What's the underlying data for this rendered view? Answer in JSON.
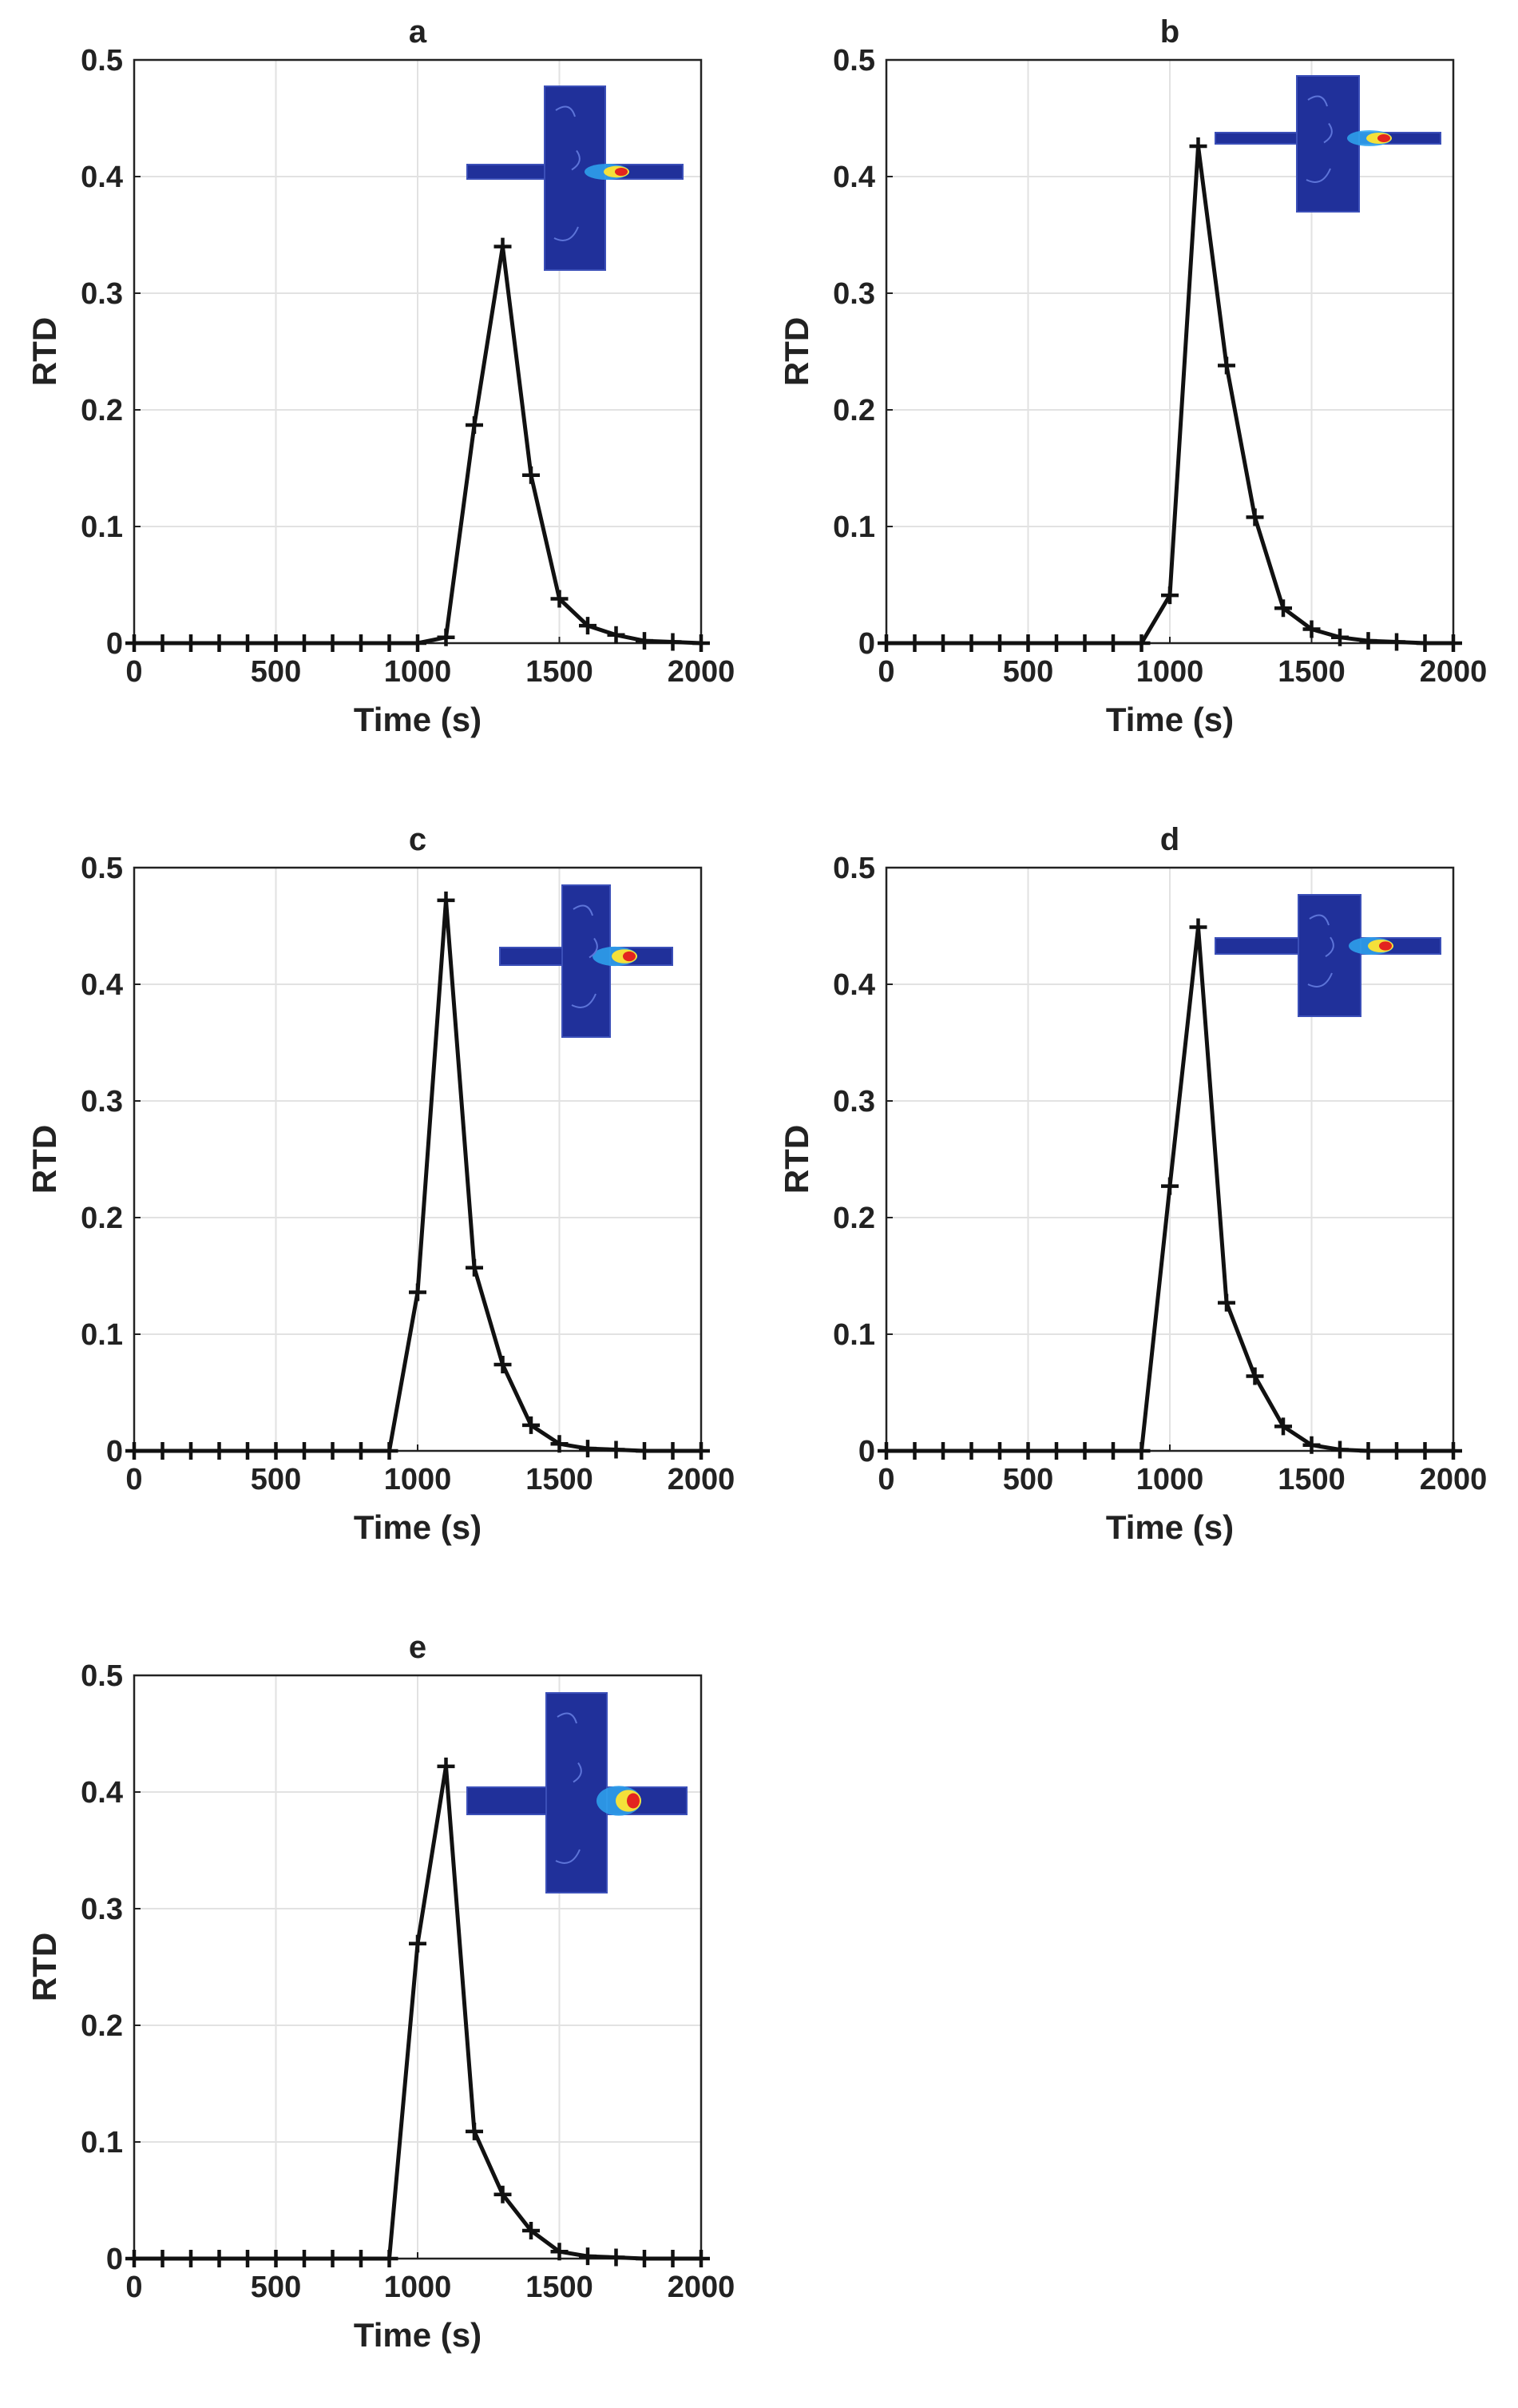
{
  "chart_data": [
    {
      "type": "line",
      "title": "a",
      "xlabel": "Time (s)",
      "ylabel": "RTD",
      "xlim": [
        0,
        2000
      ],
      "ylim": [
        0,
        0.5
      ],
      "xticks": [
        "0",
        "500",
        "1000",
        "1500",
        "2000"
      ],
      "yticks": [
        "0",
        "0.1",
        "0.2",
        "0.3",
        "0.4",
        "0.5"
      ],
      "grid": true,
      "marker": "+",
      "series": [
        {
          "name": "RTD",
          "x": [
            0,
            100,
            200,
            300,
            400,
            500,
            600,
            700,
            800,
            900,
            1000,
            1100,
            1200,
            1300,
            1400,
            1500,
            1600,
            1700,
            1800,
            1900,
            2000
          ],
          "values": [
            0,
            0,
            0,
            0,
            0,
            0,
            0,
            0,
            0,
            0,
            0,
            0.005,
            0.187,
            0.34,
            0.144,
            0.038,
            0.015,
            0.007,
            0.002,
            0.001,
            0
          ]
        }
      ],
      "inset": {
        "description": "reactor concentration contour",
        "position": "top-right",
        "color": "#20309a"
      }
    },
    {
      "type": "line",
      "title": "b",
      "xlabel": "Time (s)",
      "ylabel": "RTD",
      "xlim": [
        0,
        2000
      ],
      "ylim": [
        0,
        0.5
      ],
      "xticks": [
        "0",
        "500",
        "1000",
        "1500",
        "2000"
      ],
      "yticks": [
        "0",
        "0.1",
        "0.2",
        "0.3",
        "0.4",
        "0.5"
      ],
      "grid": true,
      "marker": "+",
      "series": [
        {
          "name": "RTD",
          "x": [
            0,
            100,
            200,
            300,
            400,
            500,
            600,
            700,
            800,
            900,
            1000,
            1100,
            1200,
            1300,
            1400,
            1500,
            1600,
            1700,
            1800,
            1900,
            2000
          ],
          "values": [
            0,
            0,
            0,
            0,
            0,
            0,
            0,
            0,
            0,
            0,
            0.041,
            0.426,
            0.238,
            0.108,
            0.03,
            0.012,
            0.005,
            0.002,
            0.001,
            0,
            0
          ]
        }
      ],
      "inset": {
        "description": "reactor concentration contour",
        "position": "top-right",
        "color": "#20309a"
      }
    },
    {
      "type": "line",
      "title": "c",
      "xlabel": "Time (s)",
      "ylabel": "RTD",
      "xlim": [
        0,
        2000
      ],
      "ylim": [
        0,
        0.5
      ],
      "xticks": [
        "0",
        "500",
        "1000",
        "1500",
        "2000"
      ],
      "yticks": [
        "0",
        "0.1",
        "0.2",
        "0.3",
        "0.4",
        "0.5"
      ],
      "grid": true,
      "marker": "+",
      "series": [
        {
          "name": "RTD",
          "x": [
            0,
            100,
            200,
            300,
            400,
            500,
            600,
            700,
            800,
            900,
            1000,
            1100,
            1200,
            1300,
            1400,
            1500,
            1600,
            1700,
            1800,
            1900,
            2000
          ],
          "values": [
            0,
            0,
            0,
            0,
            0,
            0,
            0,
            0,
            0,
            0,
            0.136,
            0.472,
            0.157,
            0.074,
            0.022,
            0.006,
            0.002,
            0.001,
            0,
            0,
            0
          ]
        }
      ],
      "inset": {
        "description": "reactor concentration contour",
        "position": "top-right",
        "color": "#20309a"
      }
    },
    {
      "type": "line",
      "title": "d",
      "xlabel": "Time (s)",
      "ylabel": "RTD",
      "xlim": [
        0,
        2000
      ],
      "ylim": [
        0,
        0.5
      ],
      "xticks": [
        "0",
        "500",
        "1000",
        "1500",
        "2000"
      ],
      "yticks": [
        "0",
        "0.1",
        "0.2",
        "0.3",
        "0.4",
        "0.5"
      ],
      "grid": true,
      "marker": "+",
      "series": [
        {
          "name": "RTD",
          "x": [
            0,
            100,
            200,
            300,
            400,
            500,
            600,
            700,
            800,
            900,
            1000,
            1100,
            1200,
            1300,
            1400,
            1500,
            1600,
            1700,
            1800,
            1900,
            2000
          ],
          "values": [
            0,
            0,
            0,
            0,
            0,
            0,
            0,
            0,
            0,
            0,
            0.227,
            0.449,
            0.127,
            0.064,
            0.021,
            0.005,
            0.001,
            0,
            0,
            0,
            0
          ]
        }
      ],
      "inset": {
        "description": "reactor concentration contour",
        "position": "top-right",
        "color": "#20309a"
      }
    },
    {
      "type": "line",
      "title": "e",
      "xlabel": "Time (s)",
      "ylabel": "RTD",
      "xlim": [
        0,
        2000
      ],
      "ylim": [
        0,
        0.5
      ],
      "xticks": [
        "0",
        "500",
        "1000",
        "1500",
        "2000"
      ],
      "yticks": [
        "0",
        "0.1",
        "0.2",
        "0.3",
        "0.4",
        "0.5"
      ],
      "grid": true,
      "marker": "+",
      "series": [
        {
          "name": "RTD",
          "x": [
            0,
            100,
            200,
            300,
            400,
            500,
            600,
            700,
            800,
            900,
            1000,
            1100,
            1200,
            1300,
            1400,
            1500,
            1600,
            1700,
            1800,
            1900,
            2000
          ],
          "values": [
            0,
            0,
            0,
            0,
            0,
            0,
            0,
            0,
            0,
            0,
            0.27,
            0.422,
            0.109,
            0.055,
            0.024,
            0.006,
            0.002,
            0.001,
            0,
            0,
            0
          ]
        }
      ],
      "inset": {
        "description": "reactor concentration contour",
        "position": "top-right",
        "color": "#20309a"
      }
    }
  ]
}
